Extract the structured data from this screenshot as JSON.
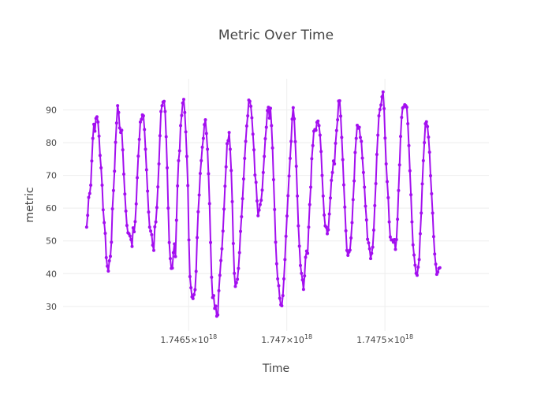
{
  "chart_data": {
    "type": "line",
    "title": "Metric Over Time",
    "xlabel": "Time",
    "ylabel": "metric",
    "xlim": [
      1.74586e+18,
      1.74803e+18
    ],
    "ylim": [
      22.5,
      99.5
    ],
    "grid": true,
    "x_ticks": [
      {
        "value": 1.7465e+18,
        "label": "1.7465×10",
        "exp": "18"
      },
      {
        "value": 1.747e+18,
        "label": "1.747×10",
        "exp": "18"
      },
      {
        "value": 1.7475e+18,
        "label": "1.7475×10",
        "exp": "18"
      }
    ],
    "y_ticks": [
      30,
      40,
      50,
      60,
      70,
      80,
      90
    ],
    "color": "#a30fef",
    "x_start": 1.74598e+18,
    "x_end": 1.74778e+18,
    "series": [
      {
        "values": [
          54.2,
          57.8,
          63.3,
          64.5,
          67.0,
          74.4,
          81.3,
          85.6,
          83.5,
          87.4,
          87.9,
          86.3,
          82.0,
          76.1,
          72.3,
          67.0,
          59.5,
          55.6,
          52.3,
          44.9,
          42.3,
          40.8,
          43.9,
          45.3,
          49.6,
          59.8,
          65.4,
          71.3,
          80.1,
          86.0,
          91.3,
          89.2,
          84.5,
          83.1,
          83.8,
          77.8,
          70.4,
          64.3,
          59.1,
          54.7,
          52.5,
          52.2,
          51.5,
          50.4,
          48.3,
          54.0,
          52.8,
          55.9,
          61.3,
          69.3,
          75.9,
          81.0,
          86.3,
          87.1,
          88.5,
          88.2,
          84.0,
          78.0,
          71.7,
          65.2,
          58.8,
          54.2,
          53.0,
          51.9,
          48.7,
          47.1,
          54.3,
          55.8,
          60.2,
          66.5,
          73.5,
          82.1,
          89.5,
          91.3,
          92.4,
          92.6,
          89.5,
          81.8,
          72.3,
          60.0,
          49.5,
          44.6,
          41.6,
          41.7,
          46.4,
          49.1,
          45.2,
          56.3,
          66.8,
          74.5,
          77.5,
          85.2,
          88.3,
          92.1,
          93.2,
          89.2,
          83.3,
          75.8,
          66.9,
          50.3,
          39.1,
          35.7,
          32.9,
          32.4,
          33.6,
          35.1,
          40.7,
          51.0,
          58.9,
          64.0,
          70.6,
          74.5,
          78.6,
          81.3,
          85.5,
          87.0,
          82.8,
          78.0,
          70.5,
          61.4,
          49.5,
          38.9,
          32.7,
          33.3,
          29.4,
          30.1,
          27.0,
          27.4,
          34.8,
          39.5,
          44.0,
          47.6,
          53.0,
          59.7,
          66.7,
          72.6,
          79.7,
          80.6,
          83.1,
          78.0,
          71.5,
          62.0,
          49.2,
          40.1,
          36.1,
          37.2,
          38.3,
          41.6,
          46.4,
          52.9,
          57.4,
          62.9,
          68.9,
          75.2,
          80.4,
          85.1,
          88.2,
          93.0,
          92.6,
          91.1,
          87.6,
          82.6,
          77.8,
          70.1,
          67.9,
          62.2,
          57.7,
          59.4,
          61.1,
          62.4,
          65.5,
          70.9,
          75.8,
          81.2,
          84.7,
          89.8,
          90.8,
          87.5,
          90.5,
          85.2,
          78.4,
          68.7,
          59.6,
          49.6,
          43.0,
          38.4,
          36.3,
          32.5,
          30.5,
          30.2,
          33.3,
          38.4,
          44.3,
          51.4,
          57.6,
          63.8,
          69.8,
          75.2,
          80.4,
          87.2,
          90.7,
          87.3,
          80.3,
          72.8,
          63.7,
          54.6,
          48.4,
          42.5,
          40.1,
          38.1,
          35.2,
          39.3,
          45.0,
          46.9,
          46.2,
          54.2,
          61.1,
          66.4,
          75.1,
          79.1,
          83.5,
          84.0,
          83.8,
          86.2,
          86.6,
          85.2,
          82.3,
          77.3,
          70.0,
          63.7,
          57.9,
          54.6,
          54.2,
          52.2,
          53.4,
          58.2,
          63.1,
          68.5,
          70.9,
          74.4,
          73.5,
          79.8,
          83.7,
          87.0,
          92.7,
          92.8,
          88.1,
          81.6,
          74.8,
          67.1,
          60.3,
          53.1,
          47.1,
          45.6,
          46.6,
          47.2,
          50.9,
          55.6,
          62.6,
          68.3,
          77.0,
          81.3,
          85.3,
          84.4,
          84.7,
          81.6,
          80.4,
          75.3,
          70.9,
          66.4,
          60.6,
          56.4,
          50.5,
          49.4,
          47.6,
          44.6,
          46.2,
          48.1,
          53.3,
          60.8,
          67.5,
          76.4,
          82.3,
          88.2,
          90.1,
          91.5,
          94.0,
          95.5,
          90.4,
          81.4,
          73.5,
          68.1,
          63.2,
          55.8,
          51.2,
          50.3,
          50.3,
          49.6,
          50.4,
          47.4,
          50.4,
          56.6,
          65.4,
          73.2,
          81.9,
          87.7,
          90.6,
          90.9,
          91.6,
          91.3,
          90.8,
          85.8,
          79.1,
          71.4,
          64.1,
          55.8,
          48.8,
          45.7,
          42.6,
          40.1,
          39.5,
          42.0,
          44.3,
          52.2,
          58.5,
          67.4,
          74.5,
          80.0,
          85.8,
          86.4,
          84.9,
          81.7,
          77.1,
          69.9,
          64.4,
          58.5,
          51.3,
          46.0,
          42.9,
          39.8,
          40.5,
          41.6,
          41.8
        ]
      }
    ]
  }
}
